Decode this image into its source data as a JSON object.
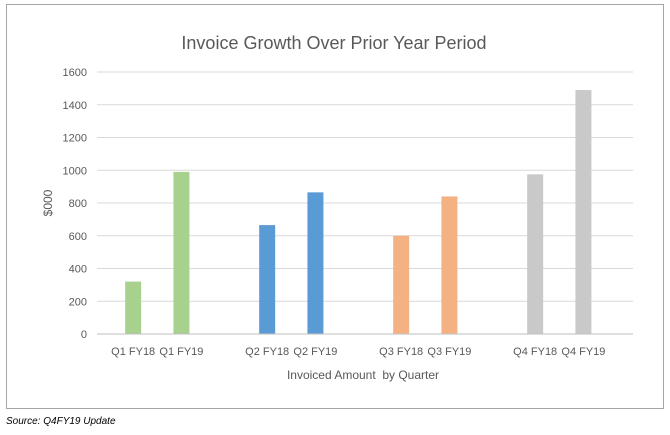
{
  "chart_data": {
    "type": "bar",
    "title": "Invoice Growth Over Prior Year Period",
    "xlabel": "Invoiced Amount  by Quarter",
    "ylabel": "$000",
    "ylim": [
      0,
      1600
    ],
    "yticks": [
      0,
      200,
      400,
      600,
      800,
      1000,
      1200,
      1400,
      1600
    ],
    "grid": true,
    "legend": "none",
    "categories": [
      "Q1 FY18",
      "Q1 FY19",
      "Q2 FY18",
      "Q2 FY19",
      "Q3 FY18",
      "Q3 FY19",
      "Q4 FY18",
      "Q4 FY19"
    ],
    "values": [
      320,
      990,
      665,
      865,
      600,
      840,
      975,
      1490
    ],
    "bar_colors": [
      "#a9d18e",
      "#a9d18e",
      "#5b9bd5",
      "#5b9bd5",
      "#f4b183",
      "#f4b183",
      "#c9c9c9",
      "#c9c9c9"
    ]
  },
  "source_note": "Source: Q4FY19 Update"
}
